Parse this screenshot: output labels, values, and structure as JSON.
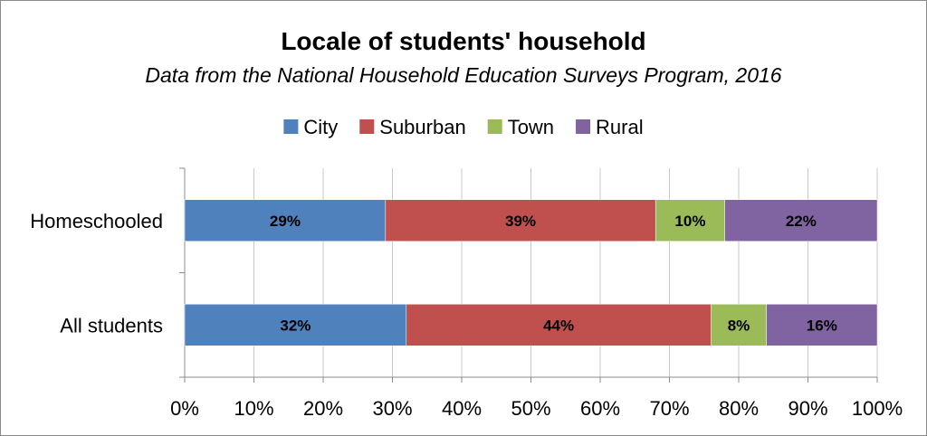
{
  "chart_data": {
    "type": "bar",
    "orientation": "horizontal",
    "stacked": true,
    "title": "Locale of students' household",
    "subtitle": "Data from the National Household Education Surveys Program, 2016",
    "categories": [
      "Homeschooled",
      "All students"
    ],
    "series": [
      {
        "name": "City",
        "color": "#4f81bd",
        "values": [
          29,
          32
        ]
      },
      {
        "name": "Suburban",
        "color": "#c0504d",
        "values": [
          39,
          44
        ]
      },
      {
        "name": "Town",
        "color": "#9bbb59",
        "values": [
          10,
          8
        ]
      },
      {
        "name": "Rural",
        "color": "#8064a2",
        "values": [
          22,
          16
        ]
      }
    ],
    "data_labels": [
      [
        "29%",
        "32%"
      ],
      [
        "39%",
        "44%"
      ],
      [
        "10%",
        "8%"
      ],
      [
        "22%",
        "16%"
      ]
    ],
    "x_ticks": [
      "0%",
      "10%",
      "20%",
      "30%",
      "40%",
      "50%",
      "60%",
      "70%",
      "80%",
      "90%",
      "100%"
    ],
    "xlim": [
      0,
      100
    ],
    "xlabel": "",
    "ylabel": "",
    "grid": true,
    "legend_position": "top"
  }
}
